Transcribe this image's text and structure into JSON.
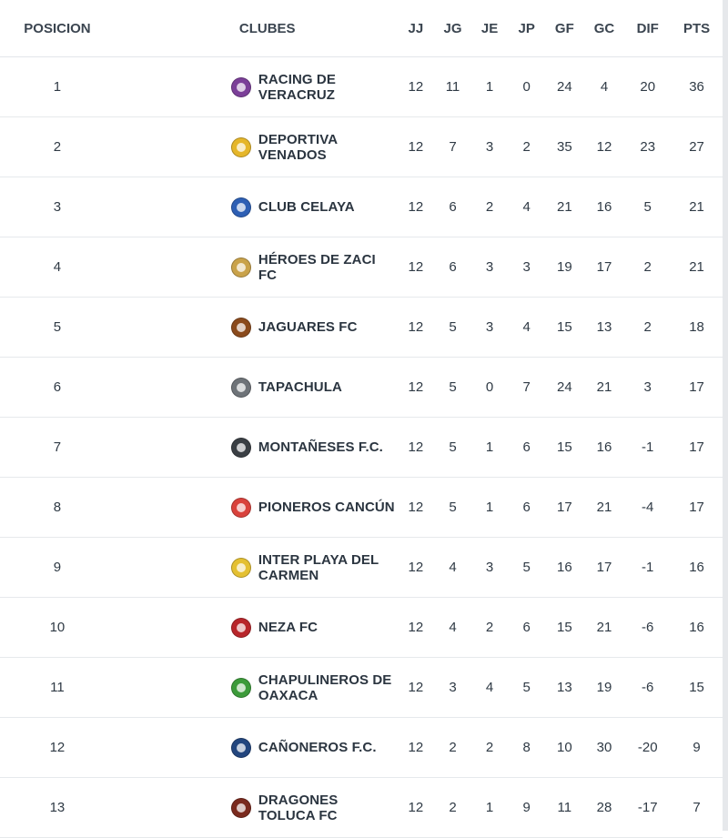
{
  "headers": {
    "pos": "POSICION",
    "club": "CLUBES",
    "jj": "JJ",
    "jg": "JG",
    "je": "JE",
    "jp": "JP",
    "gf": "GF",
    "gc": "GC",
    "dif": "DIF",
    "pts": "PTS"
  },
  "rows": [
    {
      "pos": "1",
      "club": "RACING DE VERACRUZ",
      "jj": "12",
      "jg": "11",
      "je": "1",
      "jp": "0",
      "gf": "24",
      "gc": "4",
      "dif": "20",
      "pts": "36",
      "logo_color": "#7b3f98",
      "logo_icon": "racing-crest-icon"
    },
    {
      "pos": "2",
      "club": "DEPORTIVA VENADOS",
      "jj": "12",
      "jg": "7",
      "je": "3",
      "jp": "2",
      "gf": "35",
      "gc": "12",
      "dif": "23",
      "pts": "27",
      "logo_color": "#e5b62a",
      "logo_icon": "deer-crest-icon"
    },
    {
      "pos": "3",
      "club": "CLUB CELAYA",
      "jj": "12",
      "jg": "6",
      "je": "2",
      "jp": "4",
      "gf": "21",
      "gc": "16",
      "dif": "5",
      "pts": "21",
      "logo_color": "#2d5fb4",
      "logo_icon": "celaya-crest-icon"
    },
    {
      "pos": "4",
      "club": "HÉROES DE ZACI FC",
      "jj": "12",
      "jg": "6",
      "je": "3",
      "jp": "3",
      "gf": "19",
      "gc": "17",
      "dif": "2",
      "pts": "21",
      "logo_color": "#c9a24a",
      "logo_icon": "heroes-crest-icon"
    },
    {
      "pos": "5",
      "club": "JAGUARES FC",
      "jj": "12",
      "jg": "5",
      "je": "3",
      "jp": "4",
      "gf": "15",
      "gc": "13",
      "dif": "2",
      "pts": "18",
      "logo_color": "#8a4a1c",
      "logo_icon": "jaguar-crest-icon"
    },
    {
      "pos": "6",
      "club": "TAPACHULA",
      "jj": "12",
      "jg": "5",
      "je": "0",
      "jp": "7",
      "gf": "24",
      "gc": "21",
      "dif": "3",
      "pts": "17",
      "logo_color": "#6e7378",
      "logo_icon": "tapachula-crest-icon"
    },
    {
      "pos": "7",
      "club": "MONTAÑESES F.C.",
      "jj": "12",
      "jg": "5",
      "je": "1",
      "jp": "6",
      "gf": "15",
      "gc": "16",
      "dif": "-1",
      "pts": "17",
      "logo_color": "#3a3f44",
      "logo_icon": "mountain-crest-icon"
    },
    {
      "pos": "8",
      "club": "PIONEROS CANCÚN",
      "jj": "12",
      "jg": "5",
      "je": "1",
      "jp": "6",
      "gf": "17",
      "gc": "21",
      "dif": "-4",
      "pts": "17",
      "logo_color": "#d9423c",
      "logo_icon": "pioneros-crest-icon"
    },
    {
      "pos": "9",
      "club": "INTER PLAYA DEL CARMEN",
      "jj": "12",
      "jg": "4",
      "je": "3",
      "jp": "5",
      "gf": "16",
      "gc": "17",
      "dif": "-1",
      "pts": "16",
      "logo_color": "#e4c032",
      "logo_icon": "inter-crest-icon"
    },
    {
      "pos": "10",
      "club": "NEZA FC",
      "jj": "12",
      "jg": "4",
      "je": "2",
      "jp": "6",
      "gf": "15",
      "gc": "21",
      "dif": "-6",
      "pts": "16",
      "logo_color": "#b8262b",
      "logo_icon": "neza-crest-icon"
    },
    {
      "pos": "11",
      "club": "CHAPULINEROS DE OAXACA",
      "jj": "12",
      "jg": "3",
      "je": "4",
      "jp": "5",
      "gf": "13",
      "gc": "19",
      "dif": "-6",
      "pts": "15",
      "logo_color": "#3c9b3a",
      "logo_icon": "chapulineros-crest-icon"
    },
    {
      "pos": "12",
      "club": "CAÑONEROS F.C.",
      "jj": "12",
      "jg": "2",
      "je": "2",
      "jp": "8",
      "gf": "10",
      "gc": "30",
      "dif": "-20",
      "pts": "9",
      "logo_color": "#23467e",
      "logo_icon": "canoneros-crest-icon"
    },
    {
      "pos": "13",
      "club": "DRAGONES TOLUCA FC",
      "jj": "12",
      "jg": "2",
      "je": "1",
      "jp": "9",
      "gf": "11",
      "gc": "28",
      "dif": "-17",
      "pts": "7",
      "logo_color": "#7a2a1e",
      "logo_icon": "dragon-crest-icon"
    }
  ]
}
